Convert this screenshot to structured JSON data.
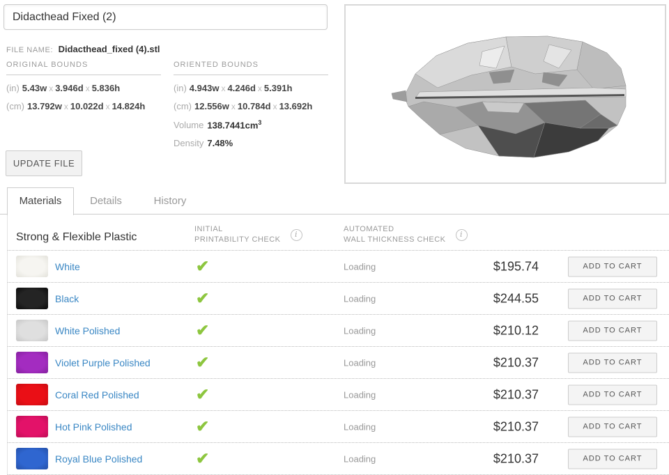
{
  "colors": {
    "link": "#3a87c4",
    "check_green": "#8dc63f"
  },
  "model_info": {
    "title_value": "Didacthead Fixed (2)",
    "file_name_label": "FILE NAME:",
    "file_name_value": "Didacthead_fixed (4).stl",
    "update_button_label": "UPDATE FILE",
    "original_bounds": {
      "heading": "ORIGINAL BOUNDS",
      "rows": [
        {
          "unit": "(in)",
          "values": [
            "5.43w",
            "3.946d",
            "5.836h"
          ]
        },
        {
          "unit": "(cm)",
          "values": [
            "13.792w",
            "10.022d",
            "14.824h"
          ]
        }
      ]
    },
    "oriented_bounds": {
      "heading": "ORIENTED BOUNDS",
      "rows": [
        {
          "unit": "(in)",
          "values": [
            "4.943w",
            "4.246d",
            "5.391h"
          ]
        },
        {
          "unit": "(cm)",
          "values": [
            "12.556w",
            "10.784d",
            "13.692h"
          ]
        }
      ],
      "volume_label": "Volume",
      "volume_value": "138.7441cm",
      "volume_exponent": "3",
      "density_label": "Density",
      "density_value": "7.48%"
    }
  },
  "tabs": [
    {
      "label": "Materials",
      "active": true
    },
    {
      "label": "Details",
      "active": false
    },
    {
      "label": "History",
      "active": false
    }
  ],
  "materials": {
    "group_title": "Strong & Flexible Plastic",
    "columns": [
      {
        "line1": "INITIAL",
        "line2": "PRINTABILITY CHECK",
        "info_icon": "i"
      },
      {
        "line1": "AUTOMATED",
        "line2": "WALL THICKNESS CHECK",
        "info_icon": "i"
      }
    ],
    "check_glyph": "✔",
    "rows": [
      {
        "name": "White",
        "swatch": "#f6f5f1",
        "swatch_edge": "#e2e1da",
        "printability": "pass",
        "wall_check": "Loading",
        "price": "$195.74",
        "cart_label": "ADD TO CART"
      },
      {
        "name": "Black",
        "swatch": "#242424",
        "swatch_edge": "#0a0a0a",
        "printability": "pass",
        "wall_check": "Loading",
        "price": "$244.55",
        "cart_label": "ADD TO CART"
      },
      {
        "name": "White Polished",
        "swatch": "#dfdfdf",
        "swatch_edge": "#c6c6c6",
        "printability": "pass",
        "wall_check": "Loading",
        "price": "$210.12",
        "cart_label": "ADD TO CART"
      },
      {
        "name": "Violet Purple Polished",
        "swatch": "#a32cc0",
        "swatch_edge": "#84219e",
        "printability": "pass",
        "wall_check": "Loading",
        "price": "$210.37",
        "cart_label": "ADD TO CART"
      },
      {
        "name": "Coral Red Polished",
        "swatch": "#ea0f16",
        "swatch_edge": "#c70c12",
        "printability": "pass",
        "wall_check": "Loading",
        "price": "$210.37",
        "cart_label": "ADD TO CART"
      },
      {
        "name": "Hot Pink Polished",
        "swatch": "#e31269",
        "swatch_edge": "#bd0e55",
        "printability": "pass",
        "wall_check": "Loading",
        "price": "$210.37",
        "cart_label": "ADD TO CART"
      },
      {
        "name": "Royal Blue Polished",
        "swatch": "#2f66d0",
        "swatch_edge": "#2450a8",
        "printability": "pass",
        "wall_check": "Loading",
        "price": "$210.37",
        "cart_label": "ADD TO CART"
      }
    ]
  }
}
